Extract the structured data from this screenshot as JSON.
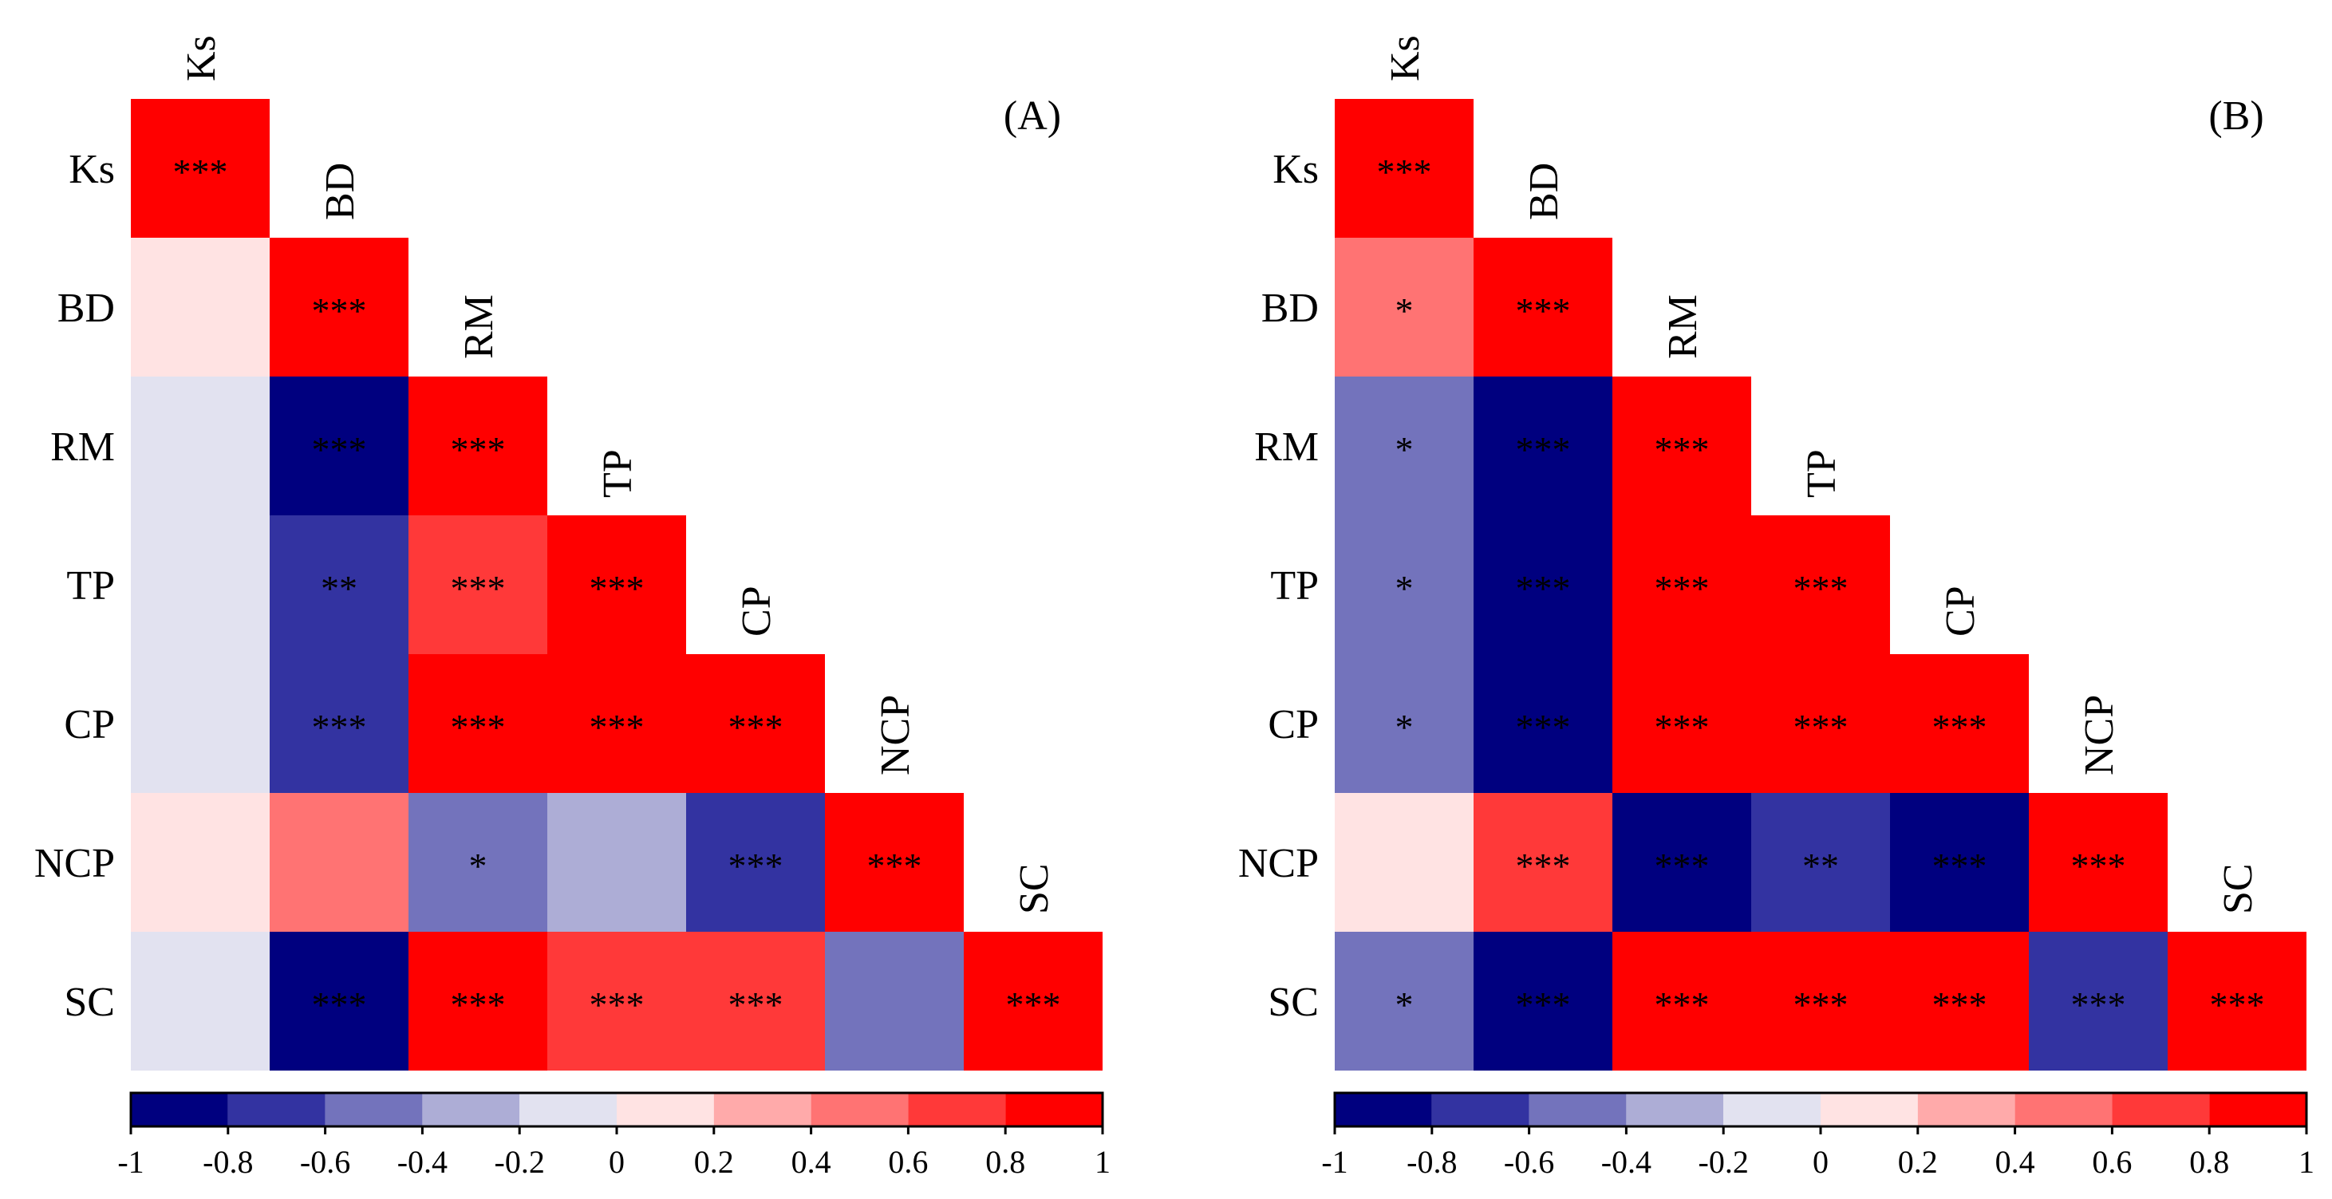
{
  "chart_data": [
    {
      "type": "heatmap",
      "panel_label": "(A)",
      "variables": [
        "Ks",
        "BD",
        "RM",
        "TP",
        "CP",
        "NCP",
        "SC"
      ],
      "triangle": "lower",
      "colorbar": {
        "ticks": [
          "-1",
          "-0.8",
          "-0.6",
          "-0.4",
          "-0.2",
          "0",
          "0.2",
          "0.4",
          "0.6",
          "0.8",
          "1"
        ],
        "min": -1,
        "max": 1,
        "steps": 10,
        "colors": [
          "#00007f",
          "#3333a1",
          "#7373bc",
          "#adadd6",
          "#e2e2f0",
          "#ffe3e3",
          "#ffaaaa",
          "#ff7373",
          "#ff3939",
          "#ff0000"
        ]
      },
      "cells": [
        {
          "row": "Ks",
          "col": "Ks",
          "value": 1,
          "sig": "***"
        },
        {
          "row": "BD",
          "col": "Ks",
          "value": 0.1,
          "sig": ""
        },
        {
          "row": "BD",
          "col": "BD",
          "value": 1,
          "sig": "***"
        },
        {
          "row": "RM",
          "col": "Ks",
          "value": -0.1,
          "sig": ""
        },
        {
          "row": "RM",
          "col": "BD",
          "value": -0.9,
          "sig": "***"
        },
        {
          "row": "RM",
          "col": "RM",
          "value": 1,
          "sig": "***"
        },
        {
          "row": "TP",
          "col": "Ks",
          "value": -0.1,
          "sig": ""
        },
        {
          "row": "TP",
          "col": "BD",
          "value": -0.7,
          "sig": "**"
        },
        {
          "row": "TP",
          "col": "RM",
          "value": 0.7,
          "sig": "***"
        },
        {
          "row": "TP",
          "col": "TP",
          "value": 1,
          "sig": "***"
        },
        {
          "row": "CP",
          "col": "Ks",
          "value": -0.1,
          "sig": ""
        },
        {
          "row": "CP",
          "col": "BD",
          "value": -0.7,
          "sig": "***"
        },
        {
          "row": "CP",
          "col": "RM",
          "value": 0.9,
          "sig": "***"
        },
        {
          "row": "CP",
          "col": "TP",
          "value": 0.9,
          "sig": "***"
        },
        {
          "row": "CP",
          "col": "CP",
          "value": 1,
          "sig": "***"
        },
        {
          "row": "NCP",
          "col": "Ks",
          "value": 0.1,
          "sig": ""
        },
        {
          "row": "NCP",
          "col": "BD",
          "value": 0.5,
          "sig": ""
        },
        {
          "row": "NCP",
          "col": "RM",
          "value": -0.5,
          "sig": "*"
        },
        {
          "row": "NCP",
          "col": "TP",
          "value": -0.3,
          "sig": ""
        },
        {
          "row": "NCP",
          "col": "CP",
          "value": -0.7,
          "sig": "***"
        },
        {
          "row": "NCP",
          "col": "NCP",
          "value": 1,
          "sig": "***"
        },
        {
          "row": "SC",
          "col": "Ks",
          "value": -0.1,
          "sig": ""
        },
        {
          "row": "SC",
          "col": "BD",
          "value": -0.9,
          "sig": "***"
        },
        {
          "row": "SC",
          "col": "RM",
          "value": 0.9,
          "sig": "***"
        },
        {
          "row": "SC",
          "col": "TP",
          "value": 0.7,
          "sig": "***"
        },
        {
          "row": "SC",
          "col": "CP",
          "value": 0.7,
          "sig": "***"
        },
        {
          "row": "SC",
          "col": "NCP",
          "value": -0.5,
          "sig": ""
        },
        {
          "row": "SC",
          "col": "SC",
          "value": 1,
          "sig": "***"
        }
      ]
    },
    {
      "type": "heatmap",
      "panel_label": "(B)",
      "variables": [
        "Ks",
        "BD",
        "RM",
        "TP",
        "CP",
        "NCP",
        "SC"
      ],
      "triangle": "lower",
      "colorbar": {
        "ticks": [
          "-1",
          "-0.8",
          "-0.6",
          "-0.4",
          "-0.2",
          "0",
          "0.2",
          "0.4",
          "0.6",
          "0.8",
          "1"
        ],
        "min": -1,
        "max": 1,
        "steps": 10,
        "colors": [
          "#00007f",
          "#3333a1",
          "#7373bc",
          "#adadd6",
          "#e2e2f0",
          "#ffe3e3",
          "#ffaaaa",
          "#ff7373",
          "#ff3939",
          "#ff0000"
        ]
      },
      "cells": [
        {
          "row": "Ks",
          "col": "Ks",
          "value": 1,
          "sig": "***"
        },
        {
          "row": "BD",
          "col": "Ks",
          "value": 0.5,
          "sig": "*"
        },
        {
          "row": "BD",
          "col": "BD",
          "value": 1,
          "sig": "***"
        },
        {
          "row": "RM",
          "col": "Ks",
          "value": -0.5,
          "sig": "*"
        },
        {
          "row": "RM",
          "col": "BD",
          "value": -0.9,
          "sig": "***"
        },
        {
          "row": "RM",
          "col": "RM",
          "value": 1,
          "sig": "***"
        },
        {
          "row": "TP",
          "col": "Ks",
          "value": -0.5,
          "sig": "*"
        },
        {
          "row": "TP",
          "col": "BD",
          "value": -0.9,
          "sig": "***"
        },
        {
          "row": "TP",
          "col": "RM",
          "value": 0.9,
          "sig": "***"
        },
        {
          "row": "TP",
          "col": "TP",
          "value": 1,
          "sig": "***"
        },
        {
          "row": "CP",
          "col": "Ks",
          "value": -0.5,
          "sig": "*"
        },
        {
          "row": "CP",
          "col": "BD",
          "value": -0.9,
          "sig": "***"
        },
        {
          "row": "CP",
          "col": "RM",
          "value": 0.9,
          "sig": "***"
        },
        {
          "row": "CP",
          "col": "TP",
          "value": 0.9,
          "sig": "***"
        },
        {
          "row": "CP",
          "col": "CP",
          "value": 1,
          "sig": "***"
        },
        {
          "row": "NCP",
          "col": "Ks",
          "value": 0.1,
          "sig": ""
        },
        {
          "row": "NCP",
          "col": "BD",
          "value": 0.7,
          "sig": "***"
        },
        {
          "row": "NCP",
          "col": "RM",
          "value": -0.9,
          "sig": "***"
        },
        {
          "row": "NCP",
          "col": "TP",
          "value": -0.7,
          "sig": "**"
        },
        {
          "row": "NCP",
          "col": "CP",
          "value": -0.9,
          "sig": "***"
        },
        {
          "row": "NCP",
          "col": "NCP",
          "value": 1,
          "sig": "***"
        },
        {
          "row": "SC",
          "col": "Ks",
          "value": -0.5,
          "sig": "*"
        },
        {
          "row": "SC",
          "col": "BD",
          "value": -0.9,
          "sig": "***"
        },
        {
          "row": "SC",
          "col": "RM",
          "value": 0.9,
          "sig": "***"
        },
        {
          "row": "SC",
          "col": "TP",
          "value": 0.9,
          "sig": "***"
        },
        {
          "row": "SC",
          "col": "CP",
          "value": 0.9,
          "sig": "***"
        },
        {
          "row": "SC",
          "col": "NCP",
          "value": -0.7,
          "sig": "***"
        },
        {
          "row": "SC",
          "col": "SC",
          "value": 1,
          "sig": "***"
        }
      ]
    }
  ]
}
